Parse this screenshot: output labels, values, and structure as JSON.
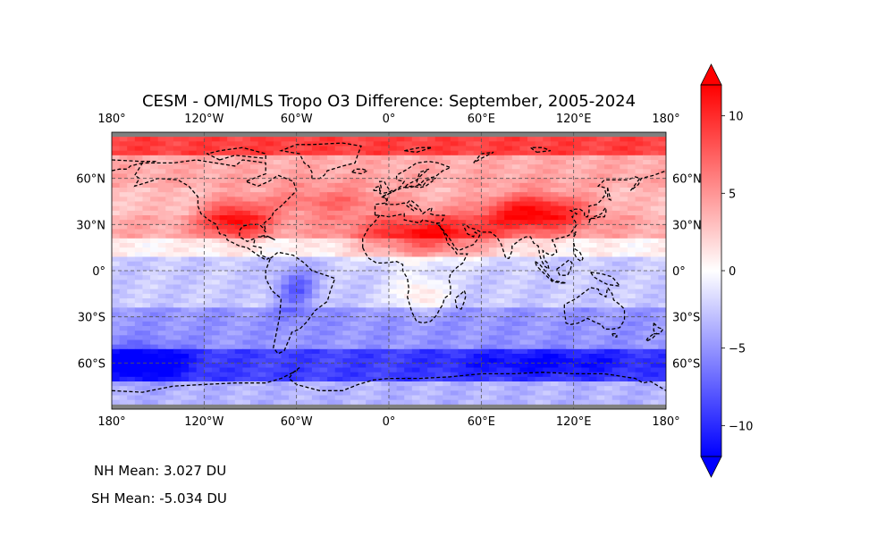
{
  "chart_data": {
    "type": "heatmap",
    "title": "CESM - OMI/MLS Tropo O3 Difference: September, 2005-2024",
    "projection": "plate-carree",
    "x_ticks": [
      "180°",
      "120°W",
      "60°W",
      "0°",
      "60°E",
      "120°E",
      "180°"
    ],
    "y_ticks": [
      "60°N",
      "30°N",
      "0°",
      "30°S",
      "60°S"
    ],
    "x_tick_values": [
      -180,
      -120,
      -60,
      0,
      60,
      120,
      180
    ],
    "y_tick_values": [
      60,
      30,
      0,
      -30,
      -60
    ],
    "xlim": [
      -180,
      180
    ],
    "ylim": [
      -90,
      90
    ],
    "grid": true,
    "coastlines": "dashed",
    "missing_color": "#808080",
    "colormap": "bwr",
    "colorbar": {
      "range": [
        -12,
        12
      ],
      "ticks": [
        10,
        5,
        0,
        -5,
        -10
      ],
      "tick_labels": [
        "10",
        "5",
        "0",
        "−5",
        "−10"
      ],
      "extend": "both",
      "orientation": "vertical",
      "colors": [
        "#0000ff",
        "#ffffff",
        "#ff0000"
      ]
    },
    "approx_field_features": [
      {
        "lon": 20,
        "lat": 25,
        "value": 10
      },
      {
        "lon": 50,
        "lat": 30,
        "value": 12
      },
      {
        "lon": 95,
        "lat": 38,
        "value": 12
      },
      {
        "lon": -100,
        "lat": 35,
        "value": 10
      },
      {
        "lon": -60,
        "lat": -15,
        "value": -7
      },
      {
        "lon": -160,
        "lat": -65,
        "value": -12
      },
      {
        "lon": 80,
        "lat": -60,
        "value": -12
      }
    ]
  },
  "stats": {
    "nh_mean": "NH Mean: 3.027 DU",
    "sh_mean": "SH Mean: -5.034 DU"
  }
}
